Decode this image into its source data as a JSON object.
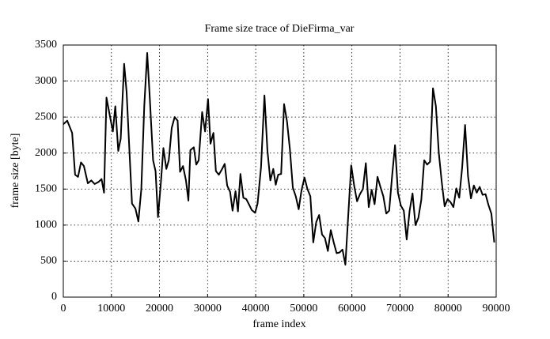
{
  "chart_data": {
    "type": "line",
    "title": "Frame size trace of DieFirma_var",
    "x_label": "frame index",
    "y_label": "frame size [byte]",
    "xlim": [
      0,
      90000
    ],
    "ylim": [
      0,
      3500
    ],
    "xticks": [
      0,
      10000,
      20000,
      30000,
      40000,
      50000,
      60000,
      70000,
      80000,
      90000
    ],
    "yticks": [
      0,
      500,
      1000,
      1500,
      2000,
      2500,
      3000,
      3500
    ],
    "grid": true,
    "series": [
      {
        "color": "#000000",
        "x": [
          0,
          816,
          1836,
          2448,
          3060,
          3672,
          4284,
          5100,
          5814,
          6528,
          7344,
          7956,
          8466,
          8976,
          9588,
          10302,
          10812,
          11424,
          11934,
          12648,
          13158,
          13770,
          14280,
          14994,
          15606,
          16218,
          16830,
          17442,
          17952,
          18666,
          19176,
          19686,
          20298,
          20808,
          21420,
          21930,
          22542,
          23154,
          23766,
          24276,
          24888,
          25500,
          26010,
          26418,
          27132,
          27642,
          28152,
          28866,
          29478,
          30090,
          30600,
          31212,
          31722,
          32334,
          32946,
          33558,
          34068,
          34680,
          35190,
          35802,
          36312,
          36822,
          37434,
          38046,
          38658,
          39168,
          39882,
          40392,
          41106,
          41820,
          42432,
          43044,
          43656,
          44166,
          44676,
          45288,
          45900,
          46507,
          47114,
          47721,
          48328,
          48935,
          49542,
          50149,
          50756,
          51363,
          51970,
          52577,
          53184,
          53791,
          54398,
          55005,
          55612,
          56219,
          56826,
          57433,
          58040,
          58647,
          59254,
          59861,
          60468,
          61075,
          61682,
          62289,
          62896,
          63503,
          64110,
          64717,
          65324,
          65931,
          66538,
          67145,
          67752,
          68359,
          68966,
          69573,
          70180,
          70787,
          71394,
          72001,
          72608,
          73215,
          73822,
          74429,
          75036,
          75643,
          76250,
          76857,
          77464,
          78071,
          78678,
          79285,
          79892,
          80499,
          81106,
          81713,
          82320,
          82927,
          83534,
          84141,
          84748,
          85355,
          85962,
          86569,
          87176,
          87783,
          88390,
          88997,
          89604
        ],
        "values": [
          2400,
          2450,
          2280,
          1700,
          1670,
          1870,
          1820,
          1580,
          1620,
          1570,
          1600,
          1640,
          1450,
          2770,
          2550,
          2300,
          2650,
          2030,
          2200,
          3240,
          2850,
          2000,
          1300,
          1230,
          1050,
          1500,
          2650,
          3390,
          2800,
          1900,
          1750,
          1110,
          1600,
          2070,
          1780,
          1900,
          2350,
          2500,
          2450,
          1740,
          1820,
          1620,
          1340,
          2040,
          2080,
          1840,
          1900,
          2570,
          2300,
          2750,
          2130,
          2280,
          1750,
          1700,
          1770,
          1850,
          1550,
          1460,
          1200,
          1470,
          1190,
          1710,
          1380,
          1360,
          1280,
          1210,
          1170,
          1300,
          1800,
          2800,
          2040,
          1620,
          1780,
          1560,
          1700,
          1710,
          2680,
          2440,
          2050,
          1520,
          1400,
          1220,
          1490,
          1660,
          1500,
          1400,
          760,
          1040,
          1140,
          870,
          820,
          640,
          930,
          760,
          610,
          620,
          660,
          450,
          1150,
          1830,
          1550,
          1330,
          1430,
          1500,
          1860,
          1250,
          1490,
          1290,
          1670,
          1530,
          1400,
          1160,
          1200,
          1680,
          2110,
          1450,
          1270,
          1200,
          800,
          1200,
          1440,
          1000,
          1100,
          1350,
          1900,
          1840,
          1880,
          2900,
          2650,
          2000,
          1600,
          1260,
          1360,
          1320,
          1250,
          1510,
          1380,
          1800,
          2390,
          1680,
          1370,
          1550,
          1450,
          1530,
          1420,
          1430,
          1280,
          1160,
          760
        ]
      }
    ]
  }
}
